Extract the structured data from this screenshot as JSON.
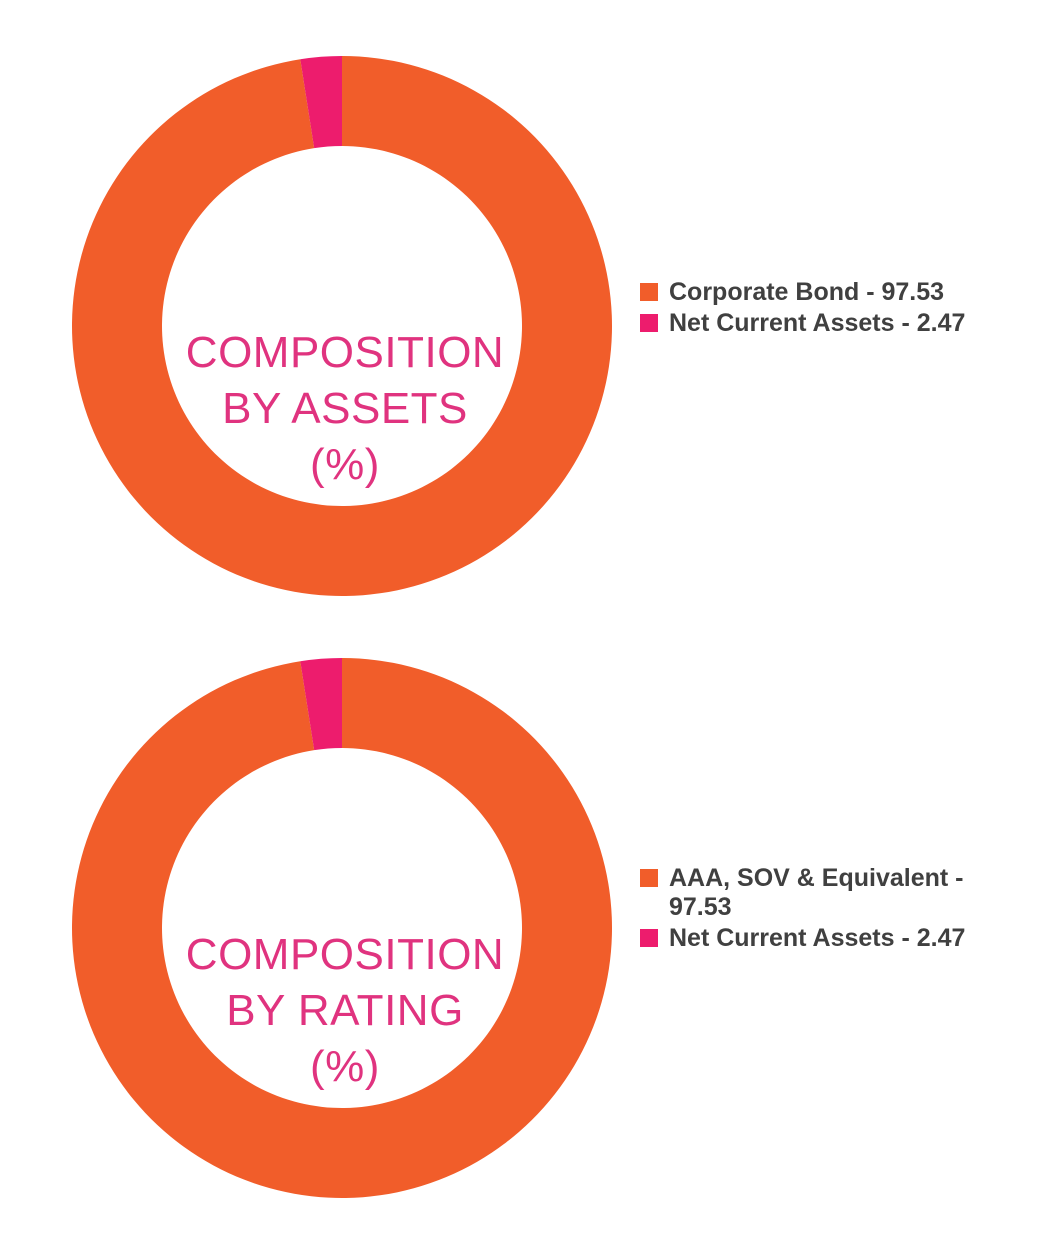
{
  "colors": {
    "orange": "#f15d2a",
    "pink": "#ed1c6d",
    "center_text": "#e0337f",
    "legend_text": "#404040"
  },
  "chart_data": [
    {
      "type": "pie",
      "donut": true,
      "title_lines": [
        "COMPOSITION",
        "BY ASSETS",
        "(%)"
      ],
      "slices": [
        {
          "label": "Corporate Bond - 97.53",
          "value": 97.53,
          "color": "#f15d2a"
        },
        {
          "label": "Net Current Assets - 2.47",
          "value": 2.47,
          "color": "#ed1c6d"
        }
      ]
    },
    {
      "type": "pie",
      "donut": true,
      "title_lines": [
        "COMPOSITION",
        "BY RATING",
        "(%)"
      ],
      "slices": [
        {
          "label": "AAA, SOV & Equivalent - 97.53",
          "value": 97.53,
          "color": "#f15d2a"
        },
        {
          "label": "Net Current Assets - 2.47",
          "value": 2.47,
          "color": "#ed1c6d"
        }
      ]
    }
  ]
}
